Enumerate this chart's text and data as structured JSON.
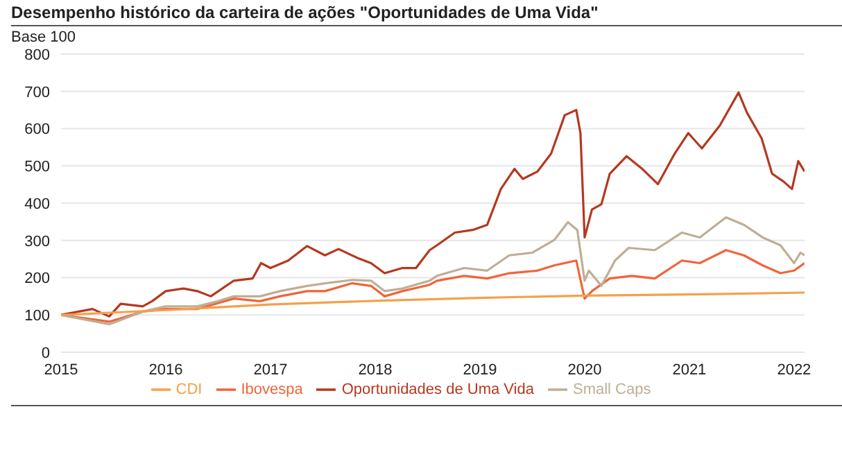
{
  "chart_data": {
    "type": "line",
    "title": "Desempenho histórico da carteira de ações \"Oportunidades de Uma Vida\"",
    "ylabel": "Base 100",
    "xlim": [
      2015,
      2022.1
    ],
    "xticks": [
      2015,
      2016,
      2017,
      2018,
      2019,
      2020,
      2021,
      2022
    ],
    "ylim": [
      0,
      800
    ],
    "yticks": [
      0,
      100,
      200,
      300,
      400,
      500,
      600,
      700,
      800
    ],
    "grid": "y",
    "legend": "bottom",
    "marker": "none",
    "line_style": "solid",
    "series": [
      {
        "name": "Oportunidades de Uma Vida",
        "color": "#b5381f",
        "x": [
          2015,
          2015.3,
          2015.46,
          2015.57,
          2015.78,
          2015.87,
          2016,
          2016.17,
          2016.3,
          2016.43,
          2016.65,
          2016.83,
          2016.91,
          2017,
          2017.17,
          2017.35,
          2017.52,
          2017.65,
          2017.83,
          2017.96,
          2018.09,
          2018.26,
          2018.39,
          2018.52,
          2018.59,
          2018.76,
          2018.93,
          2019.07,
          2019.2,
          2019.33,
          2019.41,
          2019.55,
          2019.68,
          2019.81,
          2019.92,
          2019.96,
          2020,
          2020.07,
          2020.16,
          2020.24,
          2020.4,
          2020.55,
          2020.7,
          2020.86,
          2020.99,
          2021.12,
          2021.29,
          2021.47,
          2021.55,
          2021.69,
          2021.79,
          2021.9,
          2021.98,
          2022.04,
          2022.1
        ],
        "values": [
          100,
          116,
          96,
          130,
          123,
          137,
          164,
          171,
          164,
          150,
          192,
          198,
          239,
          226,
          246,
          285,
          260,
          277,
          253,
          239,
          212,
          226,
          226,
          274,
          287,
          321,
          328,
          342,
          438,
          492,
          465,
          485,
          533,
          636,
          650,
          588,
          308,
          383,
          397,
          479,
          526,
          492,
          451,
          533,
          588,
          547,
          608,
          697,
          643,
          574,
          479,
          458,
          438,
          513,
          485
        ]
      },
      {
        "name": "Ibovespa",
        "color": "#f0643a",
        "x": [
          2015,
          2015.46,
          2015.78,
          2016,
          2016.3,
          2016.65,
          2016.9,
          2017.09,
          2017.35,
          2017.52,
          2017.78,
          2017.96,
          2018.09,
          2018.26,
          2018.52,
          2018.59,
          2018.85,
          2019.07,
          2019.28,
          2019.55,
          2019.71,
          2019.92,
          2020,
          2020.07,
          2020.24,
          2020.45,
          2020.67,
          2020.93,
          2021.1,
          2021.35,
          2021.52,
          2021.7,
          2021.87,
          2022,
          2022.1
        ],
        "values": [
          100,
          82,
          109,
          116,
          116,
          144,
          137,
          150,
          164,
          164,
          185,
          178,
          150,
          164,
          181,
          192,
          205,
          198,
          212,
          219,
          233,
          246,
          144,
          164,
          198,
          205,
          198,
          246,
          239,
          274,
          260,
          233,
          212,
          219,
          239
        ]
      },
      {
        "name": "Small Caps",
        "color": "#bfae95",
        "x": [
          2015,
          2015.46,
          2015.78,
          2016,
          2016.3,
          2016.5,
          2016.65,
          2016.9,
          2017.09,
          2017.35,
          2017.52,
          2017.78,
          2017.96,
          2018.09,
          2018.26,
          2018.52,
          2018.59,
          2018.85,
          2019.07,
          2019.28,
          2019.5,
          2019.71,
          2019.84,
          2019.93,
          2020,
          2020.04,
          2020.16,
          2020.29,
          2020.42,
          2020.67,
          2020.93,
          2021.1,
          2021.35,
          2021.52,
          2021.7,
          2021.87,
          2022,
          2022.06,
          2022.1
        ],
        "values": [
          100,
          75,
          109,
          123,
          123,
          137,
          150,
          150,
          164,
          178,
          185,
          194,
          192,
          164,
          171,
          192,
          205,
          226,
          219,
          260,
          267,
          301,
          349,
          328,
          192,
          219,
          178,
          246,
          280,
          274,
          321,
          308,
          362,
          342,
          308,
          287,
          239,
          267,
          260
        ]
      },
      {
        "name": "CDI",
        "color": "#f5a04a",
        "x": [
          2015,
          2016,
          2017,
          2018,
          2019,
          2020,
          2021,
          2022.1
        ],
        "values": [
          100,
          113,
          128,
          138,
          146,
          152,
          155,
          160
        ]
      }
    ]
  }
}
